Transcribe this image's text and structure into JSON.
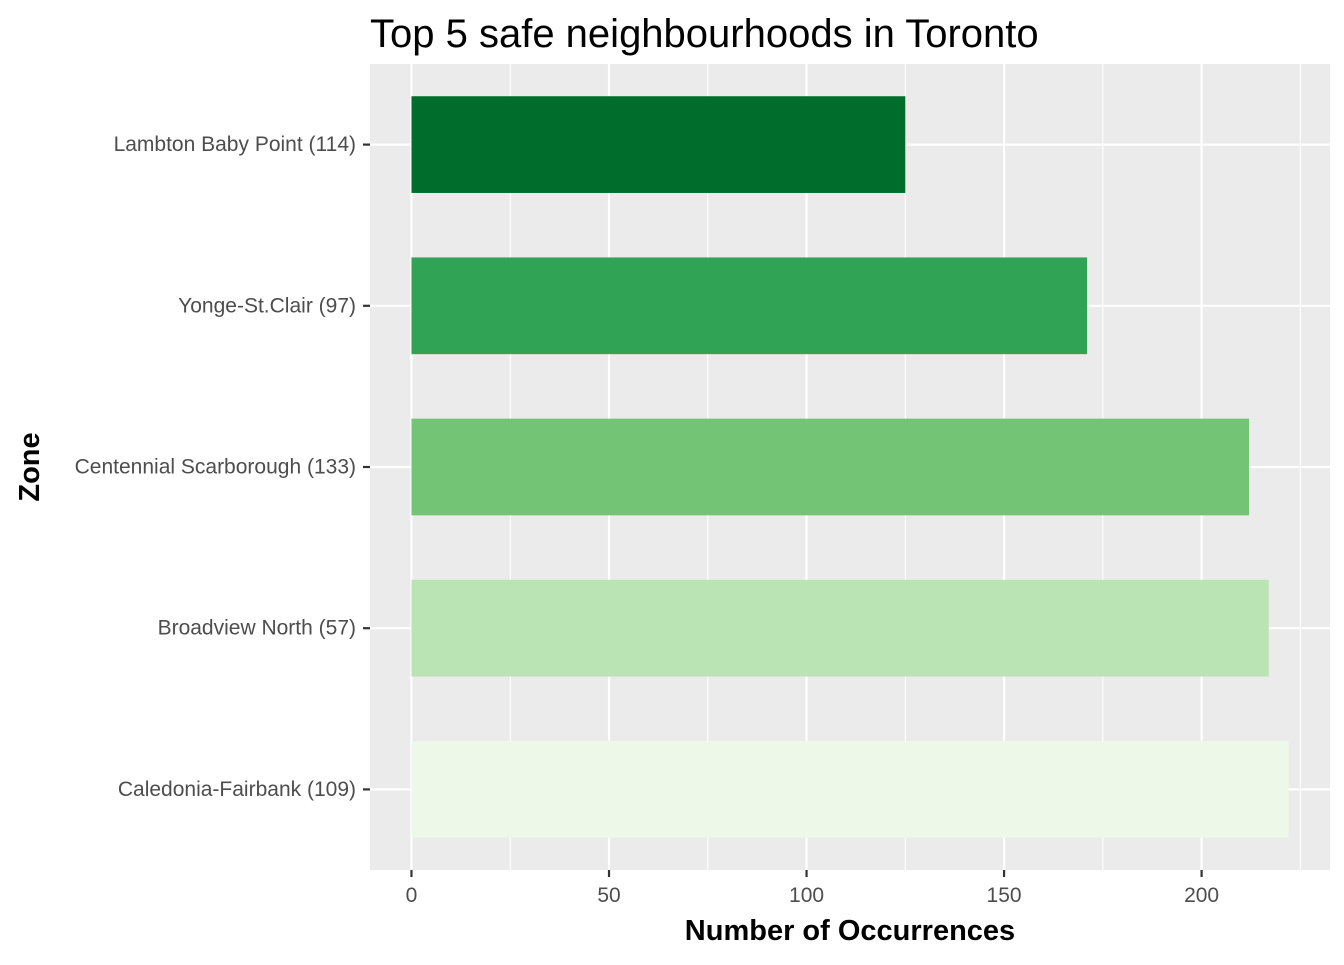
{
  "chart_data": {
    "type": "bar",
    "orientation": "horizontal",
    "title": "Top 5 safe neighbourhoods in Toronto",
    "xlabel": "Number of Occurrences",
    "ylabel": "Zone",
    "categories": [
      "Lambton Baby Point (114)",
      "Yonge-St.Clair (97)",
      "Centennial Scarborough (133)",
      "Broadview North (57)",
      "Caledonia-Fairbank (109)"
    ],
    "values": [
      125,
      171,
      212,
      217,
      222
    ],
    "colors": [
      "#006d2c",
      "#31a354",
      "#74c476",
      "#bae4b3",
      "#edf8e9"
    ],
    "xlim": [
      -10.5,
      232.5
    ],
    "xticks": [
      0,
      50,
      100,
      150,
      200
    ],
    "xtick_labels": [
      "0",
      "50",
      "100",
      "150",
      "200"
    ],
    "grid": true,
    "legend": "none",
    "panel_background": "#ebebeb",
    "grid_color": "#ffffff"
  }
}
